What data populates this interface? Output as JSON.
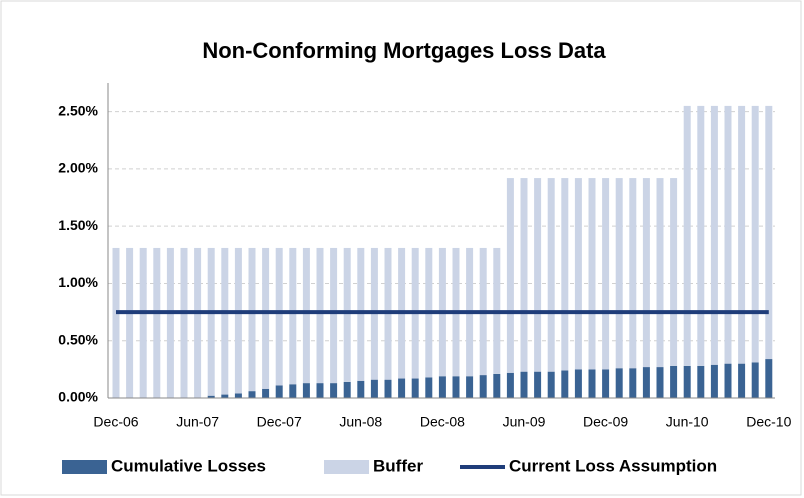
{
  "chart_data": {
    "type": "bar",
    "title": "Non-Conforming Mortgages Loss Data",
    "stacked": true,
    "categories": [
      "Dec-06",
      null,
      null,
      null,
      null,
      null,
      "Jun-07",
      null,
      null,
      null,
      null,
      null,
      "Dec-07",
      null,
      null,
      null,
      null,
      null,
      "Jun-08",
      null,
      null,
      null,
      null,
      null,
      "Dec-08",
      null,
      null,
      null,
      null,
      null,
      "Jun-09",
      null,
      null,
      null,
      null,
      null,
      "Dec-09",
      null,
      null,
      null,
      null,
      null,
      "Jun-10",
      null,
      null,
      null,
      null,
      null,
      "Dec-10"
    ],
    "series": [
      {
        "name": "Cumulative Losses",
        "type": "bar",
        "color": "#3a6393",
        "values": [
          0,
          0,
          0,
          0,
          0,
          0,
          0,
          0.02,
          0.03,
          0.04,
          0.06,
          0.08,
          0.11,
          0.12,
          0.13,
          0.13,
          0.13,
          0.14,
          0.15,
          0.16,
          0.16,
          0.17,
          0.17,
          0.18,
          0.19,
          0.19,
          0.19,
          0.2,
          0.21,
          0.22,
          0.23,
          0.23,
          0.23,
          0.24,
          0.25,
          0.25,
          0.25,
          0.26,
          0.26,
          0.27,
          0.27,
          0.28,
          0.28,
          0.28,
          0.29,
          0.3,
          0.3,
          0.31,
          0.34
        ]
      },
      {
        "name": "Buffer",
        "type": "bar",
        "color": "#cbd4e6",
        "values": [
          1.31,
          1.31,
          1.31,
          1.31,
          1.31,
          1.31,
          1.31,
          1.29,
          1.28,
          1.27,
          1.25,
          1.23,
          1.2,
          1.19,
          1.18,
          1.18,
          1.18,
          1.17,
          1.16,
          1.15,
          1.15,
          1.14,
          1.14,
          1.13,
          1.12,
          1.12,
          1.12,
          1.11,
          1.1,
          1.7,
          1.69,
          1.69,
          1.69,
          1.68,
          1.67,
          1.67,
          1.67,
          1.66,
          1.66,
          1.65,
          1.65,
          1.64,
          2.27,
          2.27,
          2.26,
          2.25,
          2.25,
          2.24,
          2.21
        ]
      },
      {
        "name": "Current Loss Assumption",
        "type": "line",
        "color": "#1f3d7a",
        "values": [
          0.75,
          0.75,
          0.75,
          0.75,
          0.75,
          0.75,
          0.75,
          0.75,
          0.75,
          0.75,
          0.75,
          0.75,
          0.75,
          0.75,
          0.75,
          0.75,
          0.75,
          0.75,
          0.75,
          0.75,
          0.75,
          0.75,
          0.75,
          0.75,
          0.75,
          0.75,
          0.75,
          0.75,
          0.75,
          0.75,
          0.75,
          0.75,
          0.75,
          0.75,
          0.75,
          0.75,
          0.75,
          0.75,
          0.75,
          0.75,
          0.75,
          0.75,
          0.75,
          0.75,
          0.75,
          0.75,
          0.75,
          0.75,
          0.75
        ]
      }
    ],
    "ylim": [
      0,
      2.75
    ],
    "yticks": [
      {
        "value": 0,
        "label": "0.00%"
      },
      {
        "value": 0.5,
        "label": "0.50%"
      },
      {
        "value": 1,
        "label": "1.00%"
      },
      {
        "value": 1.5,
        "label": "1.50%"
      },
      {
        "value": 2,
        "label": "2.00%"
      },
      {
        "value": 2.5,
        "label": "2.50%"
      }
    ],
    "grid": true,
    "legend": "bottom"
  }
}
